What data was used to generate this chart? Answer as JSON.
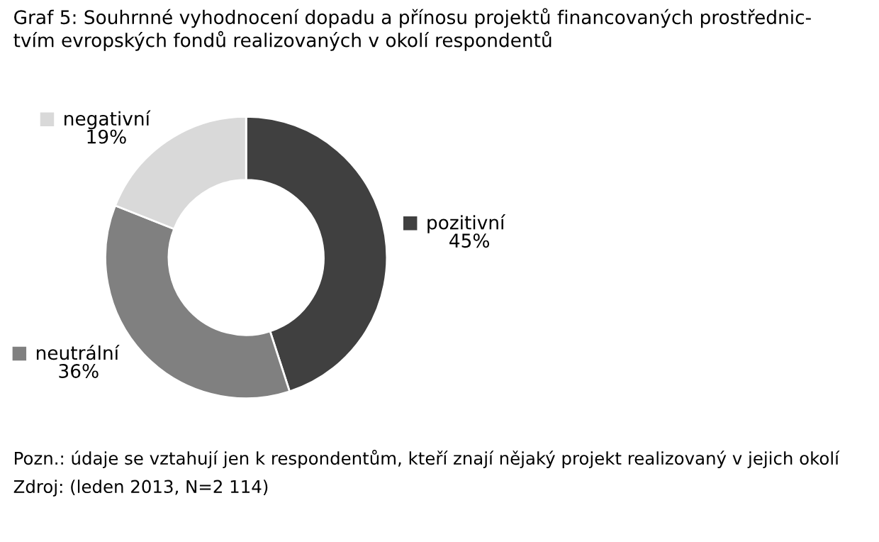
{
  "chart_data": {
    "type": "donut",
    "title": "Graf 5: Souhrnné vyhodnocení dopadu a přínosu projektů financovaných prostřednic-\ntvím evropských fondů realizovaných v okolí respondentů",
    "categories": [
      "pozitivní",
      "neutrální",
      "negativní"
    ],
    "values": [
      45,
      36,
      19
    ],
    "value_labels": [
      "45%",
      "36%",
      "19%"
    ],
    "legend": "left",
    "colors": [
      "#404040",
      "#808080",
      "#d9d9d9"
    ],
    "annotations": [
      "Pozn.: údaje se vztahují jen k respondentům, kteří znají nějaký projekt realizovaný v jejich okolí",
      "Zdroj: (leden 2013, N=2 114)"
    ]
  }
}
